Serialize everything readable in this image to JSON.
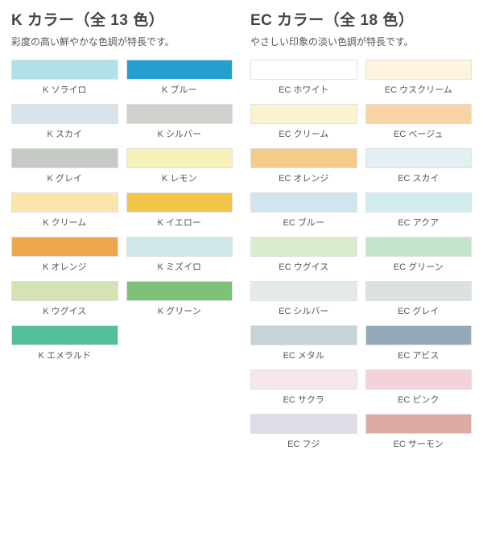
{
  "groups": [
    {
      "title": "K カラー（全 13 色）",
      "subtitle": "彩度の高い鮮やかな色調が特長です。",
      "swatches": [
        {
          "label": "K ソライロ",
          "color": "#b2e0ea"
        },
        {
          "label": "K ブルー",
          "color": "#269fcf"
        },
        {
          "label": "K スカイ",
          "color": "#d8e4ec"
        },
        {
          "label": "K シルバー",
          "color": "#cfd1cc"
        },
        {
          "label": "K グレイ",
          "color": "#c5cbc4"
        },
        {
          "label": "K レモン",
          "color": "#f6f1b8"
        },
        {
          "label": "K クリーム",
          "color": "#fae6ac"
        },
        {
          "label": "K イエロー",
          "color": "#f2c548"
        },
        {
          "label": "K オレンジ",
          "color": "#eca64e"
        },
        {
          "label": "K ミズイロ",
          "color": "#d0e7e9"
        },
        {
          "label": "K ウグイス",
          "color": "#d4e3b4"
        },
        {
          "label": "K グリーン",
          "color": "#7ec178"
        },
        {
          "label": "K エメラルド",
          "color": "#53bf9b"
        }
      ]
    },
    {
      "title": "EC カラー（全 18 色）",
      "subtitle": "やさしい印象の淡い色調が特長です。",
      "swatches": [
        {
          "label": "EC ホワイト",
          "color": "#ffffff"
        },
        {
          "label": "EC ウスクリーム",
          "color": "#fcf4dc"
        },
        {
          "label": "EC クリーム",
          "color": "#fbf3cf"
        },
        {
          "label": "EC ベージュ",
          "color": "#f7d4a6"
        },
        {
          "label": "EC オレンジ",
          "color": "#f4cb89"
        },
        {
          "label": "EC スカイ",
          "color": "#e2f0f2"
        },
        {
          "label": "EC ブルー",
          "color": "#cfe5f0"
        },
        {
          "label": "EC アクア",
          "color": "#d0ecef"
        },
        {
          "label": "EC ウグイス",
          "color": "#dbecce"
        },
        {
          "label": "EC グリーン",
          "color": "#c5e5cb"
        },
        {
          "label": "EC シルバー",
          "color": "#e4e9e9"
        },
        {
          "label": "EC グレイ",
          "color": "#dbe1e0"
        },
        {
          "label": "EC メタル",
          "color": "#c6d4d7"
        },
        {
          "label": "EC アビス",
          "color": "#94aab8"
        },
        {
          "label": "EC サクラ",
          "color": "#f7e6ea"
        },
        {
          "label": "EC ピンク",
          "color": "#f3d3d8"
        },
        {
          "label": "EC フジ",
          "color": "#e0dce8"
        },
        {
          "label": "EC サーモン",
          "color": "#ddaaa3"
        }
      ]
    }
  ]
}
